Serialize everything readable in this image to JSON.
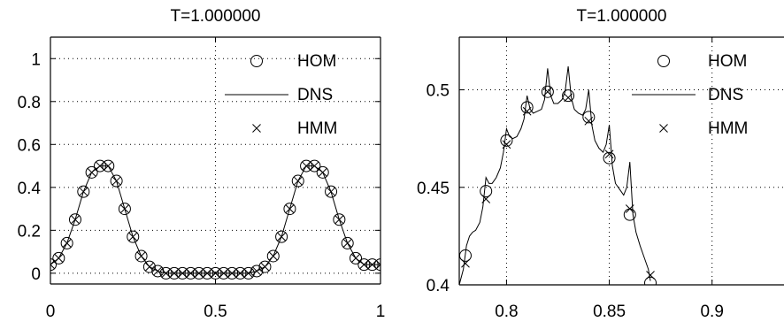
{
  "chart_data": [
    {
      "type": "line",
      "title": "T=1.000000",
      "xlabel": "",
      "ylabel": "",
      "xlim": [
        0,
        1
      ],
      "ylim": [
        -0.05,
        1.1
      ],
      "xticks": [
        0,
        0.5,
        1
      ],
      "xtick_labels": [
        "0",
        "0.5",
        "1"
      ],
      "yticks": [
        0,
        0.2,
        0.4,
        0.6,
        0.8,
        1
      ],
      "ytick_labels": [
        "0",
        "0.2",
        "0.4",
        "0.6",
        "0.8",
        "1"
      ],
      "grid": true,
      "legend_position": "top-right",
      "series": [
        {
          "name": "HOM",
          "marker": "circle",
          "x": [
            0,
            0.025,
            0.05,
            0.075,
            0.1,
            0.125,
            0.15,
            0.175,
            0.2,
            0.225,
            0.25,
            0.275,
            0.3,
            0.325,
            0.35,
            0.375,
            0.4,
            0.425,
            0.45,
            0.475,
            0.5,
            0.525,
            0.55,
            0.575,
            0.6,
            0.625,
            0.65,
            0.675,
            0.7,
            0.725,
            0.75,
            0.775,
            0.8,
            0.825,
            0.85,
            0.875,
            0.9,
            0.925,
            0.95,
            0.975,
            1
          ],
          "y": [
            0.04,
            0.07,
            0.14,
            0.25,
            0.38,
            0.47,
            0.5,
            0.5,
            0.43,
            0.3,
            0.17,
            0.08,
            0.03,
            0.01,
            0,
            0,
            0,
            0,
            0,
            0,
            0,
            0,
            0,
            0,
            0,
            0.01,
            0.03,
            0.08,
            0.17,
            0.3,
            0.43,
            0.5,
            0.5,
            0.47,
            0.38,
            0.25,
            0.14,
            0.07,
            0.04,
            0.04,
            0.04
          ]
        },
        {
          "name": "DNS",
          "marker": "line",
          "x": [
            0,
            0.025,
            0.05,
            0.075,
            0.1,
            0.125,
            0.15,
            0.175,
            0.2,
            0.225,
            0.25,
            0.275,
            0.3,
            0.325,
            0.35,
            0.375,
            0.4,
            0.425,
            0.45,
            0.475,
            0.5,
            0.525,
            0.55,
            0.575,
            0.6,
            0.625,
            0.65,
            0.675,
            0.7,
            0.725,
            0.75,
            0.775,
            0.8,
            0.825,
            0.85,
            0.875,
            0.9,
            0.925,
            0.95,
            0.975,
            1
          ],
          "y": [
            0.04,
            0.07,
            0.14,
            0.25,
            0.38,
            0.47,
            0.5,
            0.5,
            0.43,
            0.3,
            0.17,
            0.08,
            0.03,
            0.01,
            0,
            0,
            0,
            0,
            0,
            0,
            0,
            0,
            0,
            0,
            0,
            0.01,
            0.03,
            0.08,
            0.17,
            0.3,
            0.43,
            0.5,
            0.5,
            0.47,
            0.38,
            0.25,
            0.14,
            0.07,
            0.04,
            0.04,
            0.04
          ]
        },
        {
          "name": "HMM",
          "marker": "x",
          "x": [
            0,
            0.025,
            0.05,
            0.075,
            0.1,
            0.125,
            0.15,
            0.175,
            0.2,
            0.225,
            0.25,
            0.275,
            0.3,
            0.325,
            0.35,
            0.375,
            0.4,
            0.425,
            0.45,
            0.475,
            0.5,
            0.525,
            0.55,
            0.575,
            0.6,
            0.625,
            0.65,
            0.675,
            0.7,
            0.725,
            0.75,
            0.775,
            0.8,
            0.825,
            0.85,
            0.875,
            0.9,
            0.925,
            0.95,
            0.975,
            1
          ],
          "y": [
            0.04,
            0.07,
            0.14,
            0.25,
            0.38,
            0.47,
            0.5,
            0.5,
            0.43,
            0.3,
            0.17,
            0.08,
            0.03,
            0.01,
            0,
            0,
            0,
            0,
            0,
            0,
            0,
            0,
            0,
            0,
            0,
            0.01,
            0.03,
            0.08,
            0.17,
            0.3,
            0.43,
            0.5,
            0.5,
            0.47,
            0.38,
            0.25,
            0.14,
            0.07,
            0.04,
            0.04,
            0.04
          ]
        }
      ]
    },
    {
      "type": "line",
      "title": "T=1.000000",
      "xlabel": "",
      "ylabel": "",
      "xlim": [
        0.777,
        0.935
      ],
      "ylim": [
        0.4,
        0.527
      ],
      "xticks": [
        0.8,
        0.85,
        0.9
      ],
      "xtick_labels": [
        "0.8",
        "0.85",
        "0.9"
      ],
      "yticks": [
        0.4,
        0.45,
        0.5
      ],
      "ytick_labels": [
        "0.4",
        "0.45",
        "0.5"
      ],
      "grid": true,
      "legend_position": "top-right",
      "series": [
        {
          "name": "HOM",
          "marker": "circle",
          "x": [
            0.78,
            0.79,
            0.8,
            0.81,
            0.82,
            0.83,
            0.84,
            0.85,
            0.86,
            0.87
          ],
          "y": [
            0.415,
            0.448,
            0.474,
            0.491,
            0.499,
            0.497,
            0.486,
            0.465,
            0.436,
            0.401
          ]
        },
        {
          "name": "DNS",
          "marker": "line",
          "x": [
            0.777,
            0.779,
            0.7805,
            0.782,
            0.7835,
            0.785,
            0.787,
            0.7885,
            0.79,
            0.7915,
            0.793,
            0.795,
            0.797,
            0.7985,
            0.8,
            0.8015,
            0.803,
            0.805,
            0.807,
            0.8085,
            0.81,
            0.8115,
            0.813,
            0.815,
            0.817,
            0.8185,
            0.82,
            0.8215,
            0.823,
            0.825,
            0.827,
            0.8285,
            0.83,
            0.8315,
            0.833,
            0.835,
            0.837,
            0.8385,
            0.84,
            0.8415,
            0.843,
            0.845,
            0.847,
            0.8485,
            0.85,
            0.8515,
            0.853,
            0.855,
            0.857,
            0.8585,
            0.86,
            0.8615,
            0.863,
            0.865,
            0.867,
            0.869,
            0.87
          ],
          "y": [
            0.4,
            0.408,
            0.42,
            0.425,
            0.427,
            0.428,
            0.432,
            0.44,
            0.455,
            0.452,
            0.452,
            0.455,
            0.46,
            0.468,
            0.48,
            0.476,
            0.475,
            0.476,
            0.48,
            0.485,
            0.497,
            0.49,
            0.488,
            0.489,
            0.49,
            0.495,
            0.511,
            0.497,
            0.493,
            0.493,
            0.495,
            0.499,
            0.512,
            0.496,
            0.49,
            0.488,
            0.487,
            0.49,
            0.5,
            0.482,
            0.474,
            0.47,
            0.468,
            0.472,
            0.482,
            0.461,
            0.452,
            0.449,
            0.446,
            0.45,
            0.463,
            0.436,
            0.427,
            0.42,
            0.414,
            0.408,
            0.402
          ]
        },
        {
          "name": "HMM",
          "marker": "x",
          "x": [
            0.78,
            0.79,
            0.8,
            0.81,
            0.82,
            0.83,
            0.84,
            0.85,
            0.86,
            0.87
          ],
          "y": [
            0.411,
            0.444,
            0.472,
            0.489,
            0.499,
            0.496,
            0.484,
            0.467,
            0.439,
            0.405
          ]
        }
      ]
    }
  ]
}
